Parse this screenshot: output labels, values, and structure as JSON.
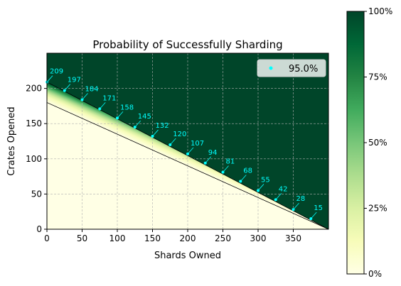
{
  "chart_data": {
    "type": "heatmap",
    "title": "Probability of Successfully Sharding",
    "xlabel": "Shards Owned",
    "ylabel": "Crates Opened",
    "xlim": [
      0,
      400
    ],
    "ylim": [
      0,
      250
    ],
    "xticks": [
      "0",
      "50",
      "100",
      "150",
      "200",
      "250",
      "300",
      "350"
    ],
    "yticks": [
      "0",
      "50",
      "100",
      "150",
      "200"
    ],
    "grid": true,
    "colorbar": {
      "min": 0,
      "max": 1,
      "ticks": [
        "0%",
        "25%",
        "50%",
        "75%",
        "100%"
      ],
      "colors": [
        "#ffffe5",
        "#f7fcb9",
        "#d9f0a3",
        "#addd8e",
        "#78c679",
        "#41ab5d",
        "#238443",
        "#006837",
        "#004529"
      ]
    },
    "boundary_lines": [
      {
        "x": [
          0,
          400
        ],
        "y": [
          180,
          0
        ]
      },
      {
        "x": [
          0,
          400
        ],
        "y": [
          209,
          0
        ]
      }
    ],
    "series": [
      {
        "name": "95.0%",
        "color": "#00ffff",
        "x": [
          0,
          25,
          50,
          75,
          100,
          125,
          150,
          175,
          200,
          225,
          250,
          275,
          300,
          325,
          350,
          375
        ],
        "y": [
          209,
          197,
          184,
          171,
          158,
          145,
          132,
          120,
          107,
          94,
          81,
          68,
          55,
          42,
          28,
          15
        ],
        "labels": [
          "209",
          "197",
          "184",
          "171",
          "158",
          "145",
          "132",
          "120",
          "107",
          "94",
          "81",
          "68",
          "55",
          "42",
          "28",
          "15"
        ]
      }
    ],
    "legend": "top-right"
  }
}
